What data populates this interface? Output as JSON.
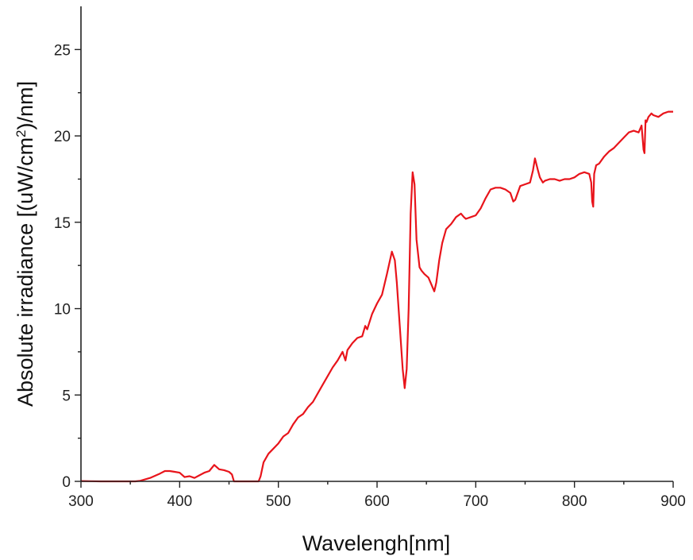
{
  "chart_data": {
    "type": "line",
    "title": "",
    "xlabel": "Wavelengh[nm]",
    "ylabel_main": "Absolute irradiance [(uW/cm",
    "ylabel_sup": "2",
    "ylabel_tail": ")/nm]",
    "xlim": [
      300,
      900
    ],
    "ylim": [
      0,
      27.5
    ],
    "xticks": [
      300,
      400,
      500,
      600,
      700,
      800,
      900
    ],
    "yticks": [
      0,
      5,
      10,
      15,
      20,
      25
    ],
    "xtick_labels": [
      "300",
      "400",
      "500",
      "600",
      "700",
      "800",
      "900"
    ],
    "ytick_labels": [
      "0",
      "5",
      "10",
      "15",
      "20",
      "25"
    ],
    "grid": false,
    "legend": "none",
    "series": [
      {
        "color": "#e8141b",
        "x": [
          300,
          310,
          320,
          330,
          340,
          350,
          355,
          360,
          370,
          380,
          385,
          390,
          395,
          400,
          405,
          410,
          415,
          420,
          425,
          430,
          435,
          440,
          445,
          450,
          453,
          455,
          460,
          465,
          470,
          475,
          478,
          480,
          482,
          485,
          490,
          495,
          500,
          505,
          510,
          515,
          520,
          525,
          530,
          535,
          540,
          545,
          550,
          555,
          560,
          565,
          568,
          570,
          575,
          580,
          585,
          588,
          590,
          595,
          600,
          605,
          610,
          615,
          618,
          620,
          623,
          626,
          628,
          630,
          632,
          634,
          636,
          638,
          640,
          643,
          645,
          648,
          652,
          655,
          658,
          660,
          663,
          666,
          670,
          675,
          680,
          685,
          688,
          690,
          695,
          700,
          705,
          710,
          715,
          720,
          725,
          730,
          735,
          738,
          740,
          745,
          750,
          755,
          758,
          760,
          763,
          765,
          768,
          770,
          775,
          780,
          785,
          790,
          795,
          800,
          805,
          810,
          815,
          817,
          818,
          819,
          820,
          822,
          825,
          830,
          835,
          840,
          845,
          850,
          855,
          860,
          865,
          868,
          870,
          871,
          872,
          873,
          875,
          878,
          880,
          885,
          890,
          895,
          900
        ],
        "y": [
          0.02,
          0.01,
          0.0,
          0.0,
          0.0,
          0.0,
          0.0,
          0.03,
          0.2,
          0.45,
          0.6,
          0.6,
          0.55,
          0.5,
          0.25,
          0.3,
          0.2,
          0.35,
          0.5,
          0.6,
          0.95,
          0.7,
          0.65,
          0.55,
          0.4,
          0.0,
          0.0,
          0.0,
          0.0,
          0.0,
          0.0,
          0.0,
          0.3,
          1.1,
          1.6,
          1.9,
          2.2,
          2.6,
          2.8,
          3.3,
          3.7,
          3.9,
          4.3,
          4.6,
          5.1,
          5.6,
          6.1,
          6.6,
          7.0,
          7.5,
          7.0,
          7.6,
          8.0,
          8.3,
          8.4,
          9.0,
          8.8,
          9.7,
          10.3,
          10.8,
          12.0,
          13.3,
          12.8,
          11.5,
          9.0,
          6.5,
          5.4,
          6.5,
          10.0,
          15.5,
          17.9,
          17.2,
          14.0,
          12.4,
          12.2,
          12.0,
          11.8,
          11.4,
          11.0,
          11.5,
          12.8,
          13.8,
          14.6,
          14.9,
          15.3,
          15.5,
          15.3,
          15.2,
          15.3,
          15.4,
          15.8,
          16.4,
          16.9,
          17.0,
          17.0,
          16.9,
          16.7,
          16.2,
          16.3,
          17.1,
          17.2,
          17.3,
          18.0,
          18.7,
          18.0,
          17.6,
          17.3,
          17.4,
          17.5,
          17.5,
          17.4,
          17.5,
          17.5,
          17.6,
          17.8,
          17.9,
          17.8,
          17.3,
          16.2,
          15.9,
          17.8,
          18.3,
          18.4,
          18.8,
          19.1,
          19.3,
          19.6,
          19.9,
          20.2,
          20.3,
          20.2,
          20.6,
          19.2,
          19.0,
          20.9,
          20.8,
          21.1,
          21.3,
          21.2,
          21.1,
          21.3,
          21.4,
          21.4
        ]
      }
    ]
  }
}
